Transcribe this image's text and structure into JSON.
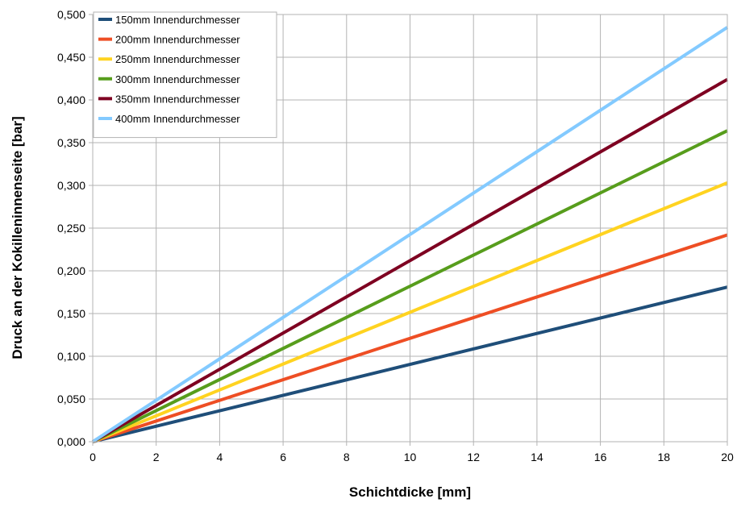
{
  "chart_data": {
    "type": "line",
    "title": "",
    "xlabel": "Schichtdicke [mm]",
    "ylabel": "Druck an der Kokilleninnenseite [bar]",
    "xlim": [
      0,
      20
    ],
    "ylim": [
      0,
      0.5
    ],
    "x_ticks": [
      "0",
      "2",
      "4",
      "6",
      "8",
      "10",
      "12",
      "14",
      "16",
      "18",
      "20"
    ],
    "y_ticks": [
      "0,000",
      "0,050",
      "0,100",
      "0,150",
      "0,200",
      "0,250",
      "0,300",
      "0,350",
      "0,400",
      "0,450",
      "0,500"
    ],
    "grid": true,
    "legend_position": "top-left",
    "series": [
      {
        "name": "150mm Innendurchmesser",
        "color": "#1f4e79",
        "x": [
          0,
          20
        ],
        "y": [
          0,
          0.181
        ]
      },
      {
        "name": "200mm Innendurchmesser",
        "color": "#ee4e24",
        "x": [
          0,
          20
        ],
        "y": [
          0,
          0.242
        ]
      },
      {
        "name": "250mm Innendurchmesser",
        "color": "#ffd320",
        "x": [
          0,
          20
        ],
        "y": [
          0,
          0.303
        ]
      },
      {
        "name": "300mm Innendurchmesser",
        "color": "#579d1c",
        "x": [
          0,
          20
        ],
        "y": [
          0,
          0.364
        ]
      },
      {
        "name": "350mm Innendurchmesser",
        "color": "#7e0021",
        "x": [
          0,
          20
        ],
        "y": [
          0,
          0.424
        ]
      },
      {
        "name": "400mm Innendurchmesser",
        "color": "#83caff",
        "x": [
          0,
          20
        ],
        "y": [
          0,
          0.485
        ]
      }
    ]
  }
}
